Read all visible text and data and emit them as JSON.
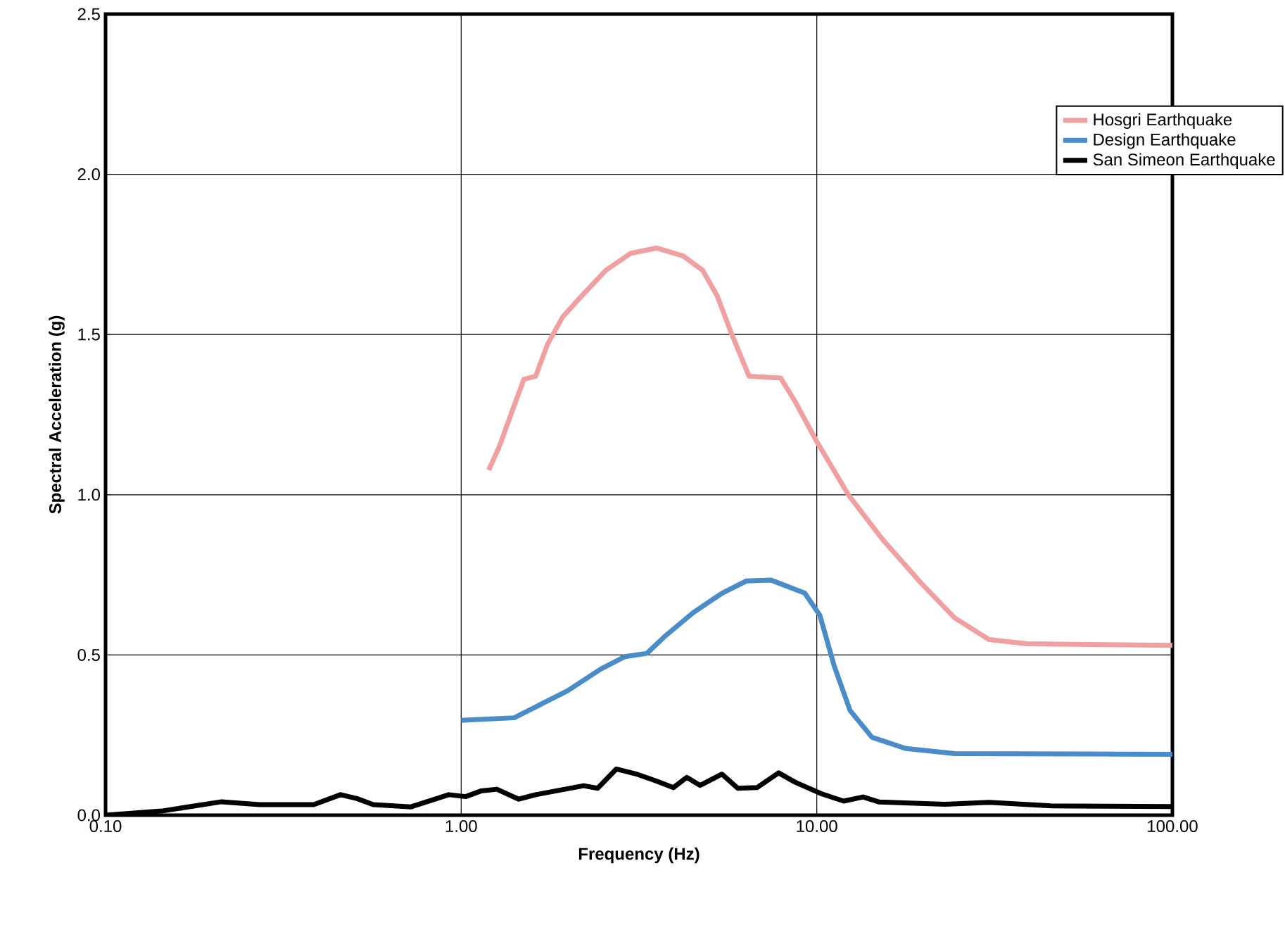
{
  "chart_data": {
    "type": "line",
    "xlabel": "Frequency (Hz)",
    "ylabel": "Spectral Acceleration (g)",
    "log": "x",
    "grid": true,
    "legend": "top right",
    "xlim": [
      0.1,
      100
    ],
    "ylim": [
      0,
      2.5
    ],
    "xticks": [
      {
        "value": 0.1,
        "label": "0.10"
      },
      {
        "value": 1,
        "label": "1.00"
      },
      {
        "value": 10,
        "label": "10.00"
      },
      {
        "value": 100,
        "label": "100.00"
      }
    ],
    "yticks": [
      {
        "value": 0,
        "label": "0.0"
      },
      {
        "value": 0.5,
        "label": "0.5"
      },
      {
        "value": 1,
        "label": "1.0"
      },
      {
        "value": 1.5,
        "label": "1.5"
      },
      {
        "value": 2,
        "label": "2.0"
      },
      {
        "value": 2.5,
        "label": "2.5"
      }
    ],
    "series": [
      {
        "name": "Hosgri Earthquake",
        "color": "#f0a0a0",
        "x": [
          1.195,
          1.28,
          1.39,
          1.5,
          1.62,
          1.75,
          1.93,
          2.18,
          2.55,
          2.99,
          3.55,
          4.21,
          4.78,
          5.25,
          5.77,
          6.45,
          7.92,
          8.7,
          10,
          12.3,
          15.3,
          19.7,
          24.4,
          30.5,
          39,
          100
        ],
        "values": [
          1.077,
          1.15,
          1.26,
          1.36,
          1.37,
          1.47,
          1.555,
          1.62,
          1.7,
          1.753,
          1.77,
          1.745,
          1.7,
          1.62,
          1.5,
          1.37,
          1.364,
          1.29,
          1.166,
          0.998,
          0.861,
          0.723,
          0.616,
          0.548,
          0.535,
          0.53
        ]
      },
      {
        "name": "Design Earthquake",
        "color": "#4a8cc8",
        "x": [
          1,
          1.41,
          1.6,
          1.99,
          2.47,
          2.89,
          3.33,
          3.72,
          4.49,
          5.42,
          6.34,
          7.42,
          9.25,
          10.2,
          11.2,
          12.4,
          14.3,
          17.8,
          24.4,
          100
        ],
        "values": [
          0.296,
          0.304,
          0.335,
          0.388,
          0.456,
          0.495,
          0.505,
          0.556,
          0.632,
          0.693,
          0.731,
          0.734,
          0.693,
          0.624,
          0.465,
          0.327,
          0.243,
          0.208,
          0.192,
          0.19
        ]
      },
      {
        "name": "San Simeon Earthquake",
        "color": "#000000",
        "x": [
          0.1,
          0.144,
          0.212,
          0.271,
          0.385,
          0.458,
          0.509,
          0.566,
          0.723,
          0.923,
          1.03,
          1.14,
          1.26,
          1.45,
          1.62,
          2.21,
          2.42,
          2.73,
          3.14,
          3.55,
          3.95,
          4.31,
          4.7,
          5.41,
          6,
          6.79,
          7.81,
          8.69,
          10.3,
          11.9,
          13.5,
          15,
          23,
          30.5,
          45.6,
          100
        ],
        "values": [
          0,
          0.013,
          0.042,
          0.033,
          0.033,
          0.064,
          0.052,
          0.033,
          0.026,
          0.064,
          0.058,
          0.076,
          0.081,
          0.05,
          0.064,
          0.092,
          0.084,
          0.144,
          0.127,
          0.106,
          0.086,
          0.118,
          0.093,
          0.128,
          0.084,
          0.086,
          0.132,
          0.103,
          0.067,
          0.044,
          0.057,
          0.041,
          0.034,
          0.04,
          0.029,
          0.027
        ]
      }
    ]
  }
}
